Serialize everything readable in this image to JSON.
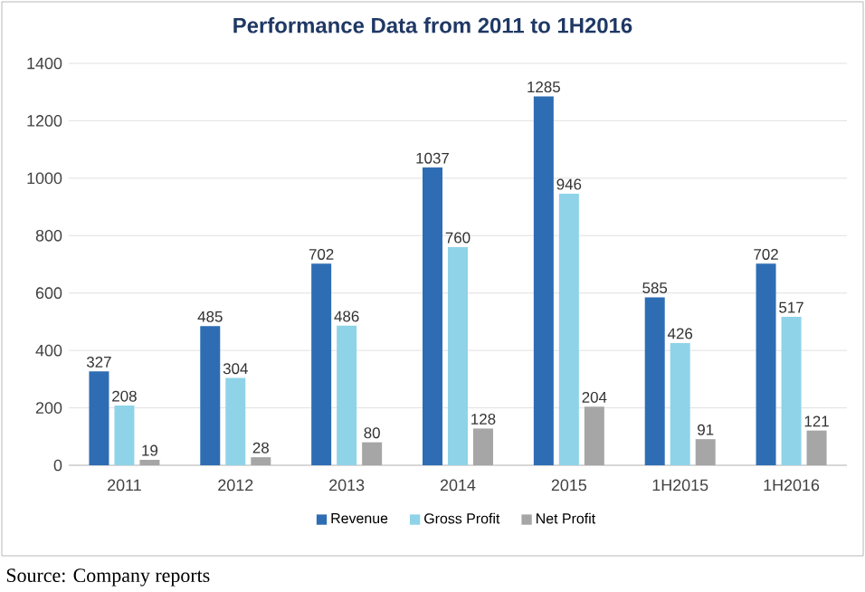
{
  "chart_data": {
    "type": "bar",
    "title": "Performance Data from 2011 to 1H2016",
    "categories": [
      "2011",
      "2012",
      "2013",
      "2014",
      "2015",
      "1H2015",
      "1H2016"
    ],
    "series": [
      {
        "name": "Revenue",
        "color": "#2e6db4",
        "values": [
          327,
          485,
          702,
          1037,
          1285,
          585,
          702
        ]
      },
      {
        "name": "Gross Profit",
        "color": "#8fd3e8",
        "values": [
          208,
          304,
          486,
          760,
          946,
          426,
          517
        ]
      },
      {
        "name": "Net Profit",
        "color": "#a6a6a6",
        "values": [
          19,
          28,
          80,
          128,
          204,
          91,
          121
        ]
      }
    ],
    "ylim": [
      0,
      1400
    ],
    "yticks": [
      0,
      200,
      400,
      600,
      800,
      1000,
      1200,
      1400
    ],
    "grid": "y",
    "legend": "bottom",
    "data_labels": true,
    "annotations": [
      "Source: Company reports"
    ]
  }
}
